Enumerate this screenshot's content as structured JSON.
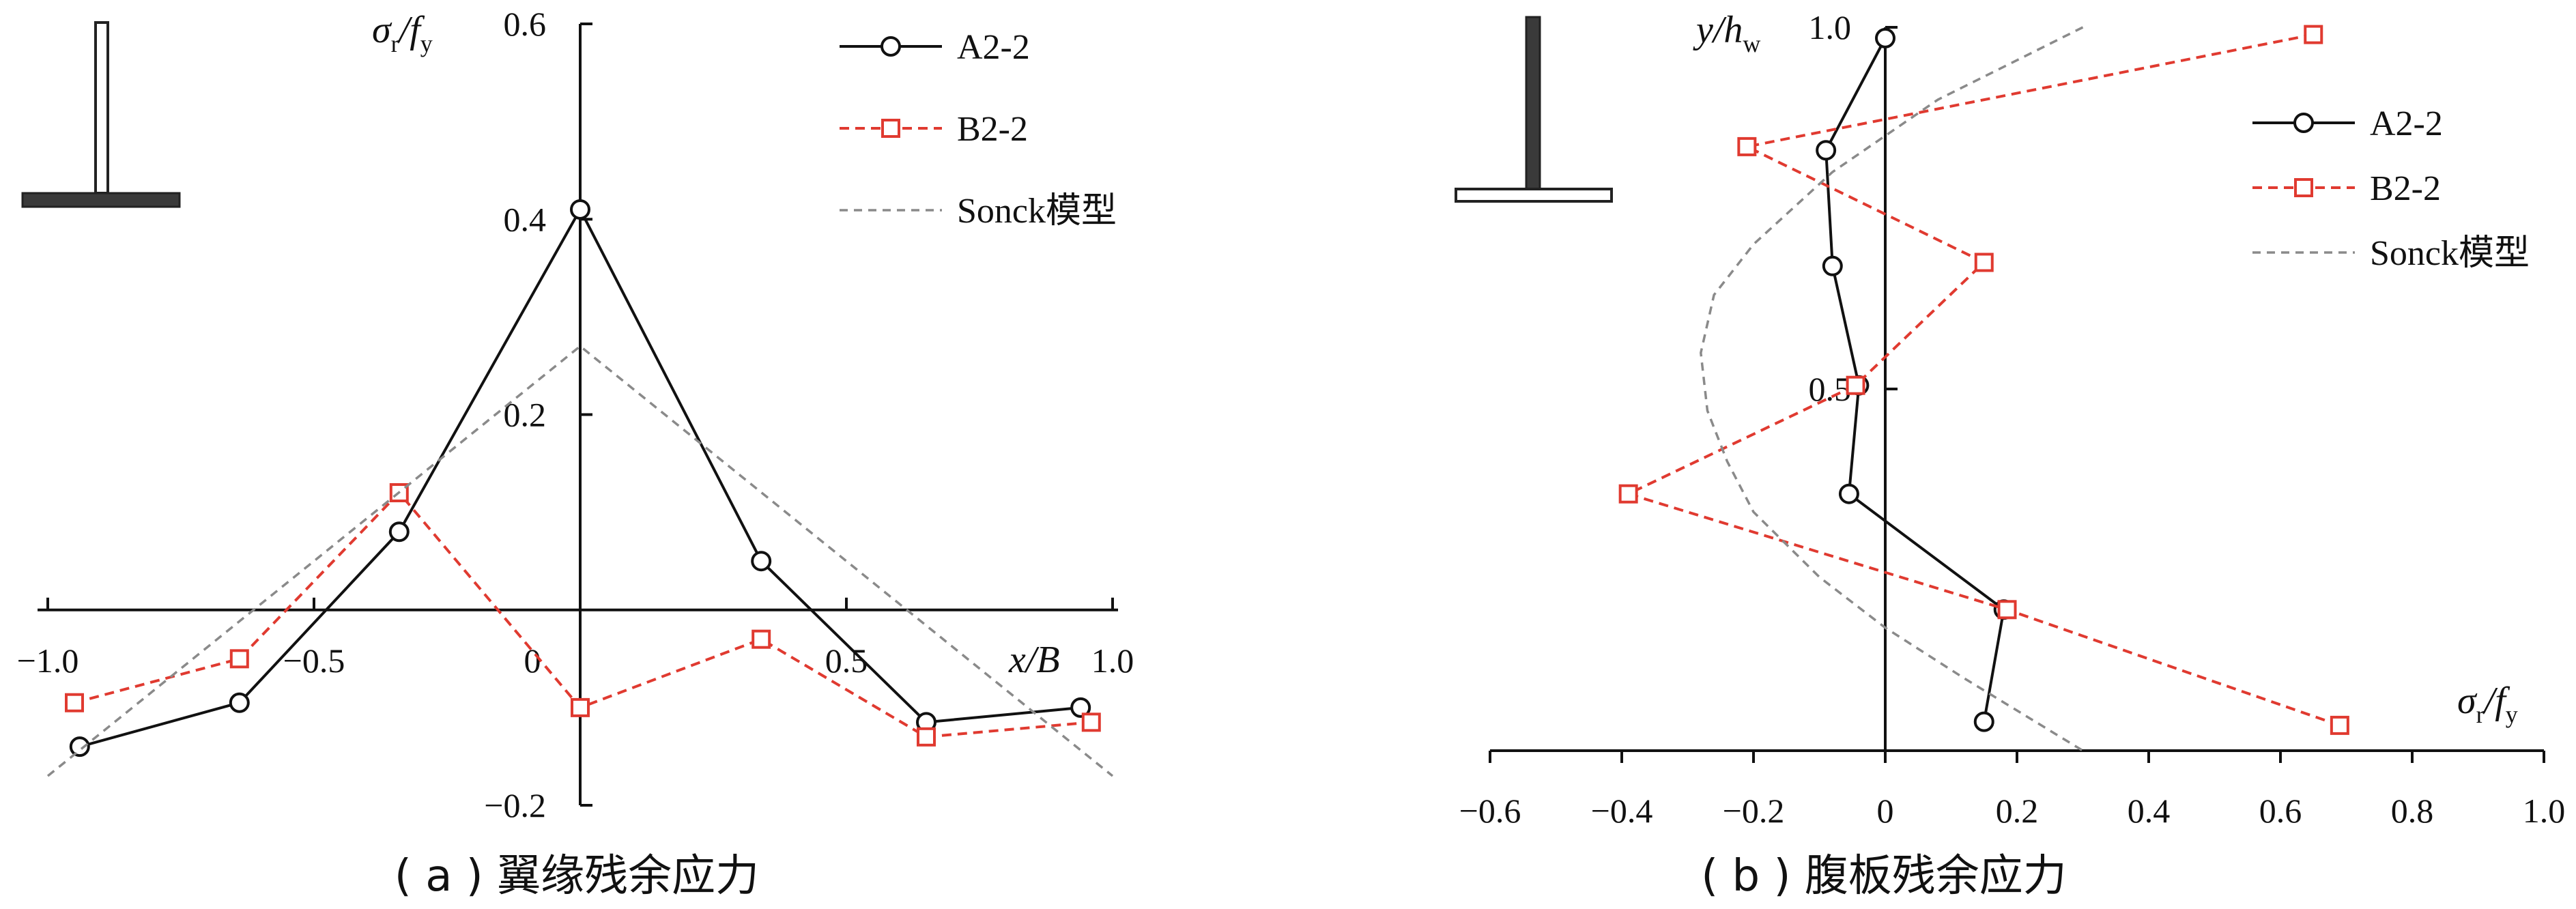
{
  "chart_data": [
    {
      "type": "line",
      "caption": "( a ) 翼缘残余应力",
      "xlabel": "x/B",
      "ylabel": "σr/fy",
      "xlim": [
        -1.0,
        1.0
      ],
      "ylim": [
        -0.2,
        0.6
      ],
      "x_ticks": [
        "-1.0",
        "-0.5",
        "0",
        "0.5",
        "1.0"
      ],
      "y_ticks": [
        "0.6",
        "0.4",
        "0.2",
        "-0.2"
      ],
      "series": [
        {
          "name": "A2-2",
          "style": "solid",
          "marker": "circle",
          "color": "#111111",
          "x": [
            -0.94,
            -0.64,
            -0.34,
            0.0,
            0.34,
            0.65,
            0.94
          ],
          "y": [
            -0.14,
            -0.095,
            0.08,
            0.41,
            0.05,
            -0.115,
            -0.1
          ]
        },
        {
          "name": "B2-2",
          "style": "dashed",
          "marker": "square",
          "color": "#e03a30",
          "x": [
            -0.95,
            -0.64,
            -0.34,
            0.0,
            0.34,
            0.65,
            0.96
          ],
          "y": [
            -0.095,
            -0.05,
            0.12,
            -0.1,
            -0.03,
            -0.13,
            -0.115
          ]
        },
        {
          "name": "Sonck模型",
          "style": "dashed",
          "marker": "none",
          "color": "#8a8a8a",
          "x": [
            -1.0,
            0.0,
            1.0
          ],
          "y": [
            -0.17,
            0.27,
            -0.17
          ]
        }
      ],
      "legend": "top-right",
      "grid": false
    },
    {
      "type": "line",
      "caption": "( b ) 腹板残余应力",
      "xlabel": "σr/fy",
      "ylabel": "y/hw",
      "xlim": [
        -0.6,
        1.0
      ],
      "ylim": [
        0.0,
        1.0
      ],
      "x_ticks": [
        "-0.6",
        "-0.4",
        "-0.2",
        "0",
        "0.2",
        "0.4",
        "0.6",
        "0.8",
        "1.0"
      ],
      "y_ticks": [
        "1.0",
        "0.5"
      ],
      "series": [
        {
          "name": "A2-2",
          "style": "solid",
          "marker": "circle",
          "color": "#111111",
          "x": [
            0.0,
            -0.09,
            -0.08,
            -0.04,
            -0.055,
            0.18,
            0.15
          ],
          "y": [
            0.985,
            0.83,
            0.67,
            0.505,
            0.355,
            0.195,
            0.04
          ]
        },
        {
          "name": "B2-2",
          "style": "dashed",
          "marker": "square",
          "color": "#e03a30",
          "x": [
            0.65,
            -0.21,
            0.15,
            -0.045,
            -0.39,
            0.185,
            0.69
          ],
          "y": [
            0.99,
            0.835,
            0.675,
            0.505,
            0.355,
            0.195,
            0.035
          ]
        },
        {
          "name": "Sonck模型",
          "style": "dashed",
          "marker": "none",
          "color": "#8a8a8a",
          "x": [
            0.3,
            0.08,
            -0.08,
            -0.2,
            -0.26,
            -0.28,
            -0.27,
            -0.24,
            -0.2,
            -0.1,
            0.0,
            0.12,
            0.3
          ],
          "y": [
            1.0,
            0.9,
            0.8,
            0.7,
            0.63,
            0.55,
            0.47,
            0.4,
            0.33,
            0.24,
            0.17,
            0.1,
            0.0
          ]
        }
      ],
      "legend": "top-right",
      "grid": false
    }
  ]
}
